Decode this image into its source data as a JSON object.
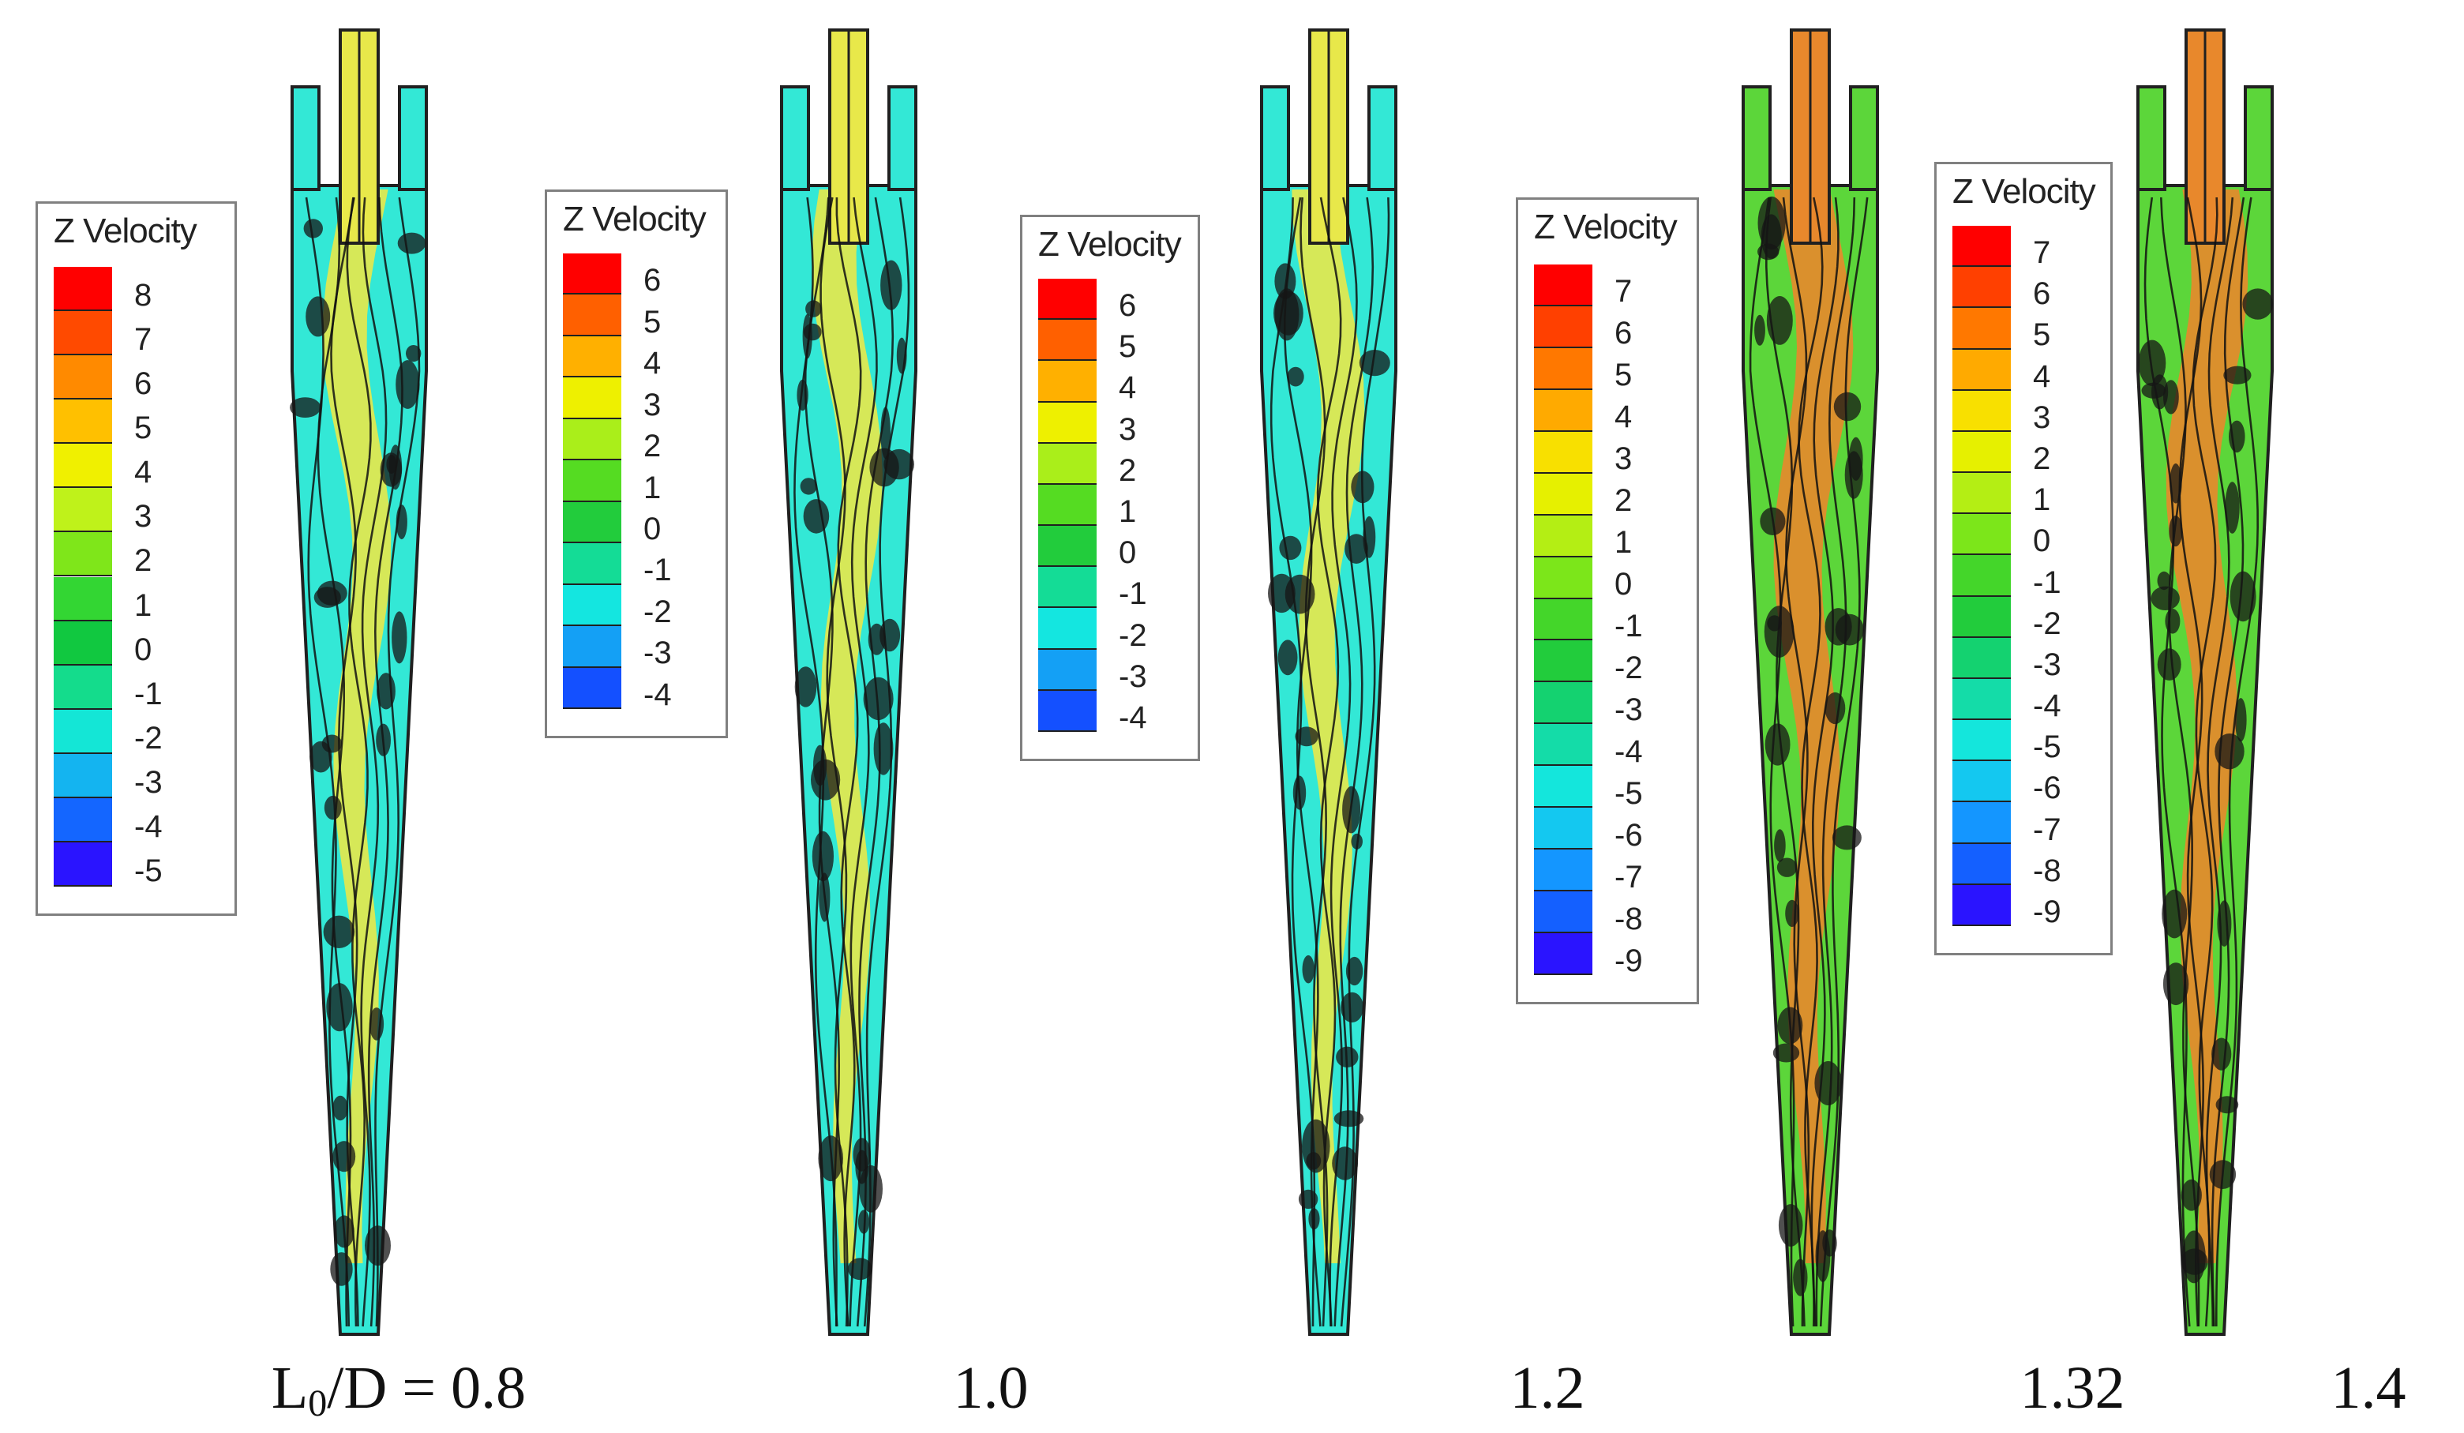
{
  "legend_title": "Z Velocity",
  "colors": {
    "cyan_field": "#33e8d6",
    "green_field": "#5cd63a",
    "yellow_core": "#e8e84a",
    "orange_core": "#e8882c",
    "streamline": "#101010"
  },
  "panels": [
    {
      "caption_prefix": "L",
      "caption_sub": "0",
      "caption_rest": "/D = 0.8",
      "legend_labels": [
        "8",
        "7",
        "6",
        "5",
        "4",
        "3",
        "2",
        "1",
        "0",
        "-1",
        "-2",
        "-3",
        "-4",
        "-5"
      ],
      "legend_colors": [
        "#ff0000",
        "#ff4a00",
        "#ff8a00",
        "#ffc000",
        "#f0f000",
        "#bff21a",
        "#7fe61a",
        "#33d633",
        "#11c840",
        "#14dc8c",
        "#14e6d6",
        "#14b4f0",
        "#1466ff",
        "#2a14ff"
      ],
      "field": "cyan",
      "core": "yellow"
    },
    {
      "caption_prefix": "",
      "caption_sub": "",
      "caption_rest": "1.0",
      "legend_labels": [
        "6",
        "5",
        "4",
        "3",
        "2",
        "1",
        "0",
        "-1",
        "-2",
        "-3",
        "-4"
      ],
      "legend_colors": [
        "#ff0000",
        "#ff6000",
        "#ffb000",
        "#eef000",
        "#aaee1a",
        "#55dc22",
        "#22cc3c",
        "#14dc96",
        "#14e6e0",
        "#14a0f5",
        "#1450ff"
      ],
      "field": "cyan",
      "core": "yellow"
    },
    {
      "caption_prefix": "",
      "caption_sub": "",
      "caption_rest": "1.2",
      "legend_labels": [
        "6",
        "5",
        "4",
        "3",
        "2",
        "1",
        "0",
        "-1",
        "-2",
        "-3",
        "-4"
      ],
      "legend_colors": [
        "#ff0000",
        "#ff6000",
        "#ffb000",
        "#eef000",
        "#aaee1a",
        "#55dc22",
        "#22cc3c",
        "#14dc96",
        "#14e6e0",
        "#14a0f5",
        "#1450ff"
      ],
      "field": "cyan",
      "core": "yellow"
    },
    {
      "caption_prefix": "",
      "caption_sub": "",
      "caption_rest": "1.32",
      "legend_labels": [
        "7",
        "6",
        "5",
        "4",
        "3",
        "2",
        "1",
        "0",
        "-1",
        "-2",
        "-3",
        "-4",
        "-5",
        "-6",
        "-7",
        "-8",
        "-9"
      ],
      "legend_colors": [
        "#ff0000",
        "#ff4000",
        "#ff7800",
        "#ffaa00",
        "#f8e000",
        "#e6f000",
        "#b4ee14",
        "#7ce61a",
        "#44d62a",
        "#22cc3c",
        "#14d270",
        "#14dca8",
        "#14e6dc",
        "#14c8f0",
        "#1496ff",
        "#1460ff",
        "#2a14ff"
      ],
      "field": "green",
      "core": "orange"
    },
    {
      "caption_prefix": "",
      "caption_sub": "",
      "caption_rest": "1.4",
      "legend_labels": [
        "7",
        "6",
        "5",
        "4",
        "3",
        "2",
        "1",
        "0",
        "-1",
        "-2",
        "-3",
        "-4",
        "-5",
        "-6",
        "-7",
        "-8",
        "-9"
      ],
      "legend_colors": [
        "#ff0000",
        "#ff4000",
        "#ff7800",
        "#ffaa00",
        "#f8e000",
        "#e6f000",
        "#b4ee14",
        "#7ce61a",
        "#44d62a",
        "#22cc3c",
        "#14d270",
        "#14dca8",
        "#14e6dc",
        "#14c8f0",
        "#1496ff",
        "#1460ff",
        "#2a14ff"
      ],
      "field": "green",
      "core": "orange"
    }
  ]
}
